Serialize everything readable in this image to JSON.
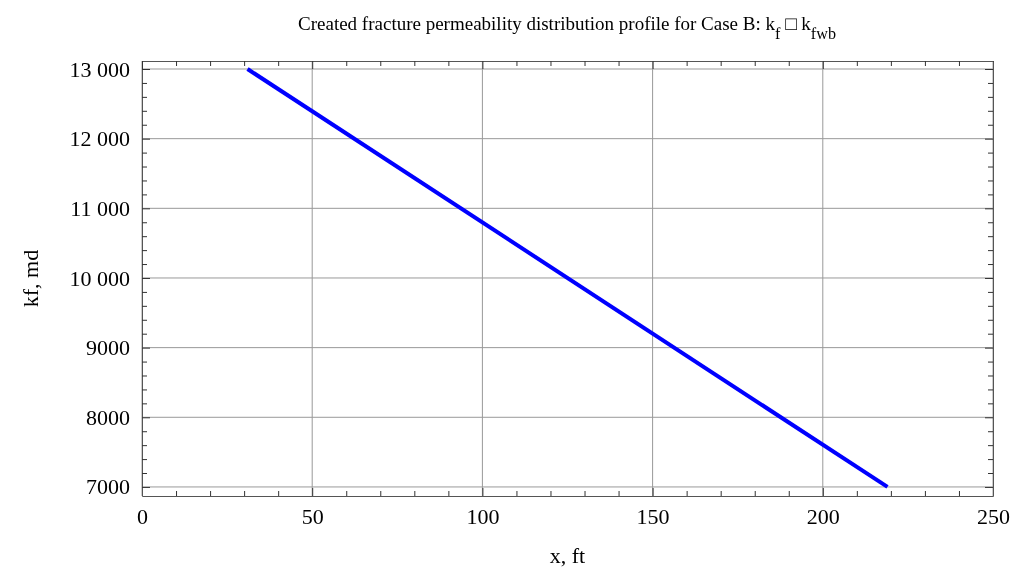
{
  "chart_data": {
    "type": "line",
    "title": "Created fracture permeability distribution profile for Case B: k$_{f}$ □ k$_{fwb}$",
    "xlabel": "x,  ft",
    "ylabel": "kf, md",
    "series": [
      {
        "color": "#0000ff",
        "x": [
          31,
          219
        ],
        "values": [
          13000,
          7000
        ]
      }
    ],
    "xlim": [
      0,
      250
    ],
    "ylim": [
      6870,
      13115
    ],
    "xticks": [
      0,
      {
        "value": 10,
        "label": null
      },
      {
        "value": 20,
        "label": null
      },
      {
        "value": 30,
        "label": null
      },
      {
        "value": 40,
        "label": null
      },
      50,
      {
        "value": 60,
        "label": null
      },
      {
        "value": 70,
        "label": null
      },
      {
        "value": 80,
        "label": null
      },
      {
        "value": 90,
        "label": null
      },
      100,
      {
        "value": 110,
        "label": null
      },
      {
        "value": 120,
        "label": null
      },
      {
        "value": 130,
        "label": null
      },
      {
        "value": 140,
        "label": null
      },
      150,
      {
        "value": 160,
        "label": null
      },
      {
        "value": 170,
        "label": null
      },
      {
        "value": 180,
        "label": null
      },
      {
        "value": 190,
        "label": null
      },
      200,
      {
        "value": 210,
        "label": null
      },
      {
        "value": 220,
        "label": null
      },
      {
        "value": 230,
        "label": null
      },
      {
        "value": 240,
        "label": null
      },
      250
    ],
    "yticks": [
      {
        "value": 7000,
        "label": "7000"
      },
      {
        "value": 7200,
        "label": null
      },
      {
        "value": 7400,
        "label": null
      },
      {
        "value": 7600,
        "label": null
      },
      {
        "value": 7800,
        "label": null
      },
      8000,
      {
        "value": 8200,
        "label": null
      },
      {
        "value": 8400,
        "label": null
      },
      {
        "value": 8600,
        "label": null
      },
      {
        "value": 8800,
        "label": null
      },
      9000,
      {
        "value": 9200,
        "label": null
      },
      {
        "value": 9400,
        "label": null
      },
      {
        "value": 9600,
        "label": null
      },
      {
        "value": 9800,
        "label": null
      },
      {
        "value": 10000,
        "label": "10 000"
      },
      {
        "value": 10200,
        "label": null
      },
      {
        "value": 10400,
        "label": null
      },
      {
        "value": 10600,
        "label": null
      },
      {
        "value": 10800,
        "label": null
      },
      {
        "value": 11000,
        "label": "11 000"
      },
      {
        "value": 11200,
        "label": null
      },
      {
        "value": 11400,
        "label": null
      },
      {
        "value": 11600,
        "label": null
      },
      {
        "value": 11800,
        "label": null
      },
      {
        "value": 12000,
        "label": "12 000"
      },
      {
        "value": 12200,
        "label": null
      },
      {
        "value": 12400,
        "label": null
      },
      {
        "value": 12600,
        "label": null
      },
      {
        "value": 12800,
        "label": null
      },
      {
        "value": 13000,
        "label": "13 000"
      }
    ],
    "grid": true,
    "line_style": "solid",
    "marker": "none"
  }
}
